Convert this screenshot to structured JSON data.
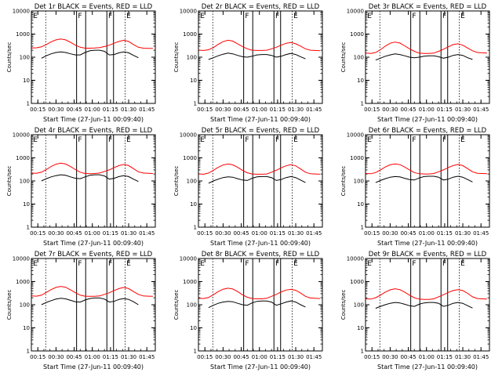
{
  "figure": {
    "start_time_label": "Start Time (27-Jun-11 00:09:40)",
    "ylabel": "Counts/sec",
    "x_tick_labels": [
      "00:15",
      "00:30",
      "00:45",
      "01:00",
      "01:15",
      "01:30",
      "01:45"
    ],
    "y_tick_labels": [
      "1",
      "10",
      "100",
      "1000",
      "10000"
    ],
    "colors": {
      "events": "#000000",
      "lld": "#ff0000"
    },
    "markers": {
      "eclipse": "E",
      "fault": "F"
    }
  },
  "chart_data": [
    {
      "type": "line",
      "title": "Det 1r BLACK = Events, RED = LLD",
      "xlabel": "Start Time (27-Jun-11 00:09:40)",
      "ylabel": "Counts/sec",
      "xlim": [
        "00:09:40",
        "01:52:00"
      ],
      "ylim": [
        1,
        10000
      ],
      "yscale": "log",
      "grid": false,
      "x_ticks": [
        "00:15",
        "00:30",
        "00:45",
        "01:00",
        "01:15",
        "01:30",
        "01:45"
      ],
      "x": [
        "00:10",
        "00:14",
        "00:18",
        "00:22",
        "00:26",
        "00:30",
        "00:34",
        "00:38",
        "00:42",
        "00:46",
        "00:50",
        "00:54",
        "00:58",
        "01:02",
        "01:06",
        "01:10",
        "01:14",
        "01:18",
        "01:22",
        "01:26",
        "01:30",
        "01:34",
        "01:38",
        "01:42",
        "01:46",
        "01:50"
      ],
      "series": [
        {
          "name": "LLD",
          "color": "#ff0000",
          "values": [
            250,
            255,
            280,
            350,
            460,
            560,
            610,
            560,
            440,
            330,
            270,
            245,
            245,
            250,
            260,
            290,
            330,
            400,
            480,
            540,
            480,
            350,
            270,
            245,
            240,
            240
          ]
        },
        {
          "name": "Events",
          "color": "#000000",
          "values": [
            null,
            null,
            90,
            115,
            140,
            160,
            170,
            160,
            140,
            125,
            125,
            160,
            190,
            200,
            200,
            180,
            125,
            130,
            155,
            170,
            155,
            120,
            95,
            null,
            null,
            null
          ]
        }
      ]
    },
    {
      "type": "line",
      "title": "Det 2r BLACK = Events, RED = LLD",
      "xlabel": "Start Time (27-Jun-11 00:09:40)",
      "ylabel": "Counts/sec",
      "xlim": [
        "00:09:40",
        "01:52:00"
      ],
      "ylim": [
        1,
        10000
      ],
      "yscale": "log",
      "grid": false,
      "x_ticks": [
        "00:15",
        "00:30",
        "00:45",
        "01:00",
        "01:15",
        "01:30",
        "01:45"
      ],
      "x": [
        "00:10",
        "00:14",
        "00:18",
        "00:22",
        "00:26",
        "00:30",
        "00:34",
        "00:38",
        "00:42",
        "00:46",
        "00:50",
        "00:54",
        "00:58",
        "01:02",
        "01:06",
        "01:10",
        "01:14",
        "01:18",
        "01:22",
        "01:26",
        "01:30",
        "01:34",
        "01:38",
        "01:42",
        "01:46",
        "01:50"
      ],
      "series": [
        {
          "name": "LLD",
          "color": "#ff0000",
          "values": [
            200,
            195,
            210,
            260,
            360,
            470,
            540,
            500,
            380,
            290,
            230,
            200,
            195,
            195,
            200,
            230,
            270,
            330,
            400,
            430,
            380,
            300,
            230,
            200,
            195,
            190
          ]
        },
        {
          "name": "Events",
          "color": "#000000",
          "values": [
            null,
            null,
            80,
            95,
            115,
            135,
            150,
            140,
            120,
            105,
            100,
            110,
            125,
            130,
            130,
            120,
            100,
            110,
            130,
            145,
            130,
            105,
            85,
            null,
            null,
            null
          ]
        }
      ]
    },
    {
      "type": "line",
      "title": "Det 3r BLACK = Events, RED = LLD",
      "xlabel": "Start Time (27-Jun-11 00:09:40)",
      "ylabel": "Counts/sec",
      "xlim": [
        "00:09:40",
        "01:52:00"
      ],
      "ylim": [
        1,
        10000
      ],
      "yscale": "log",
      "grid": false,
      "x_ticks": [
        "00:15",
        "00:30",
        "00:45",
        "01:00",
        "01:15",
        "01:30",
        "01:45"
      ],
      "x": [
        "00:10",
        "00:14",
        "00:18",
        "00:22",
        "00:26",
        "00:30",
        "00:34",
        "00:38",
        "00:42",
        "00:46",
        "00:50",
        "00:54",
        "00:58",
        "01:02",
        "01:06",
        "01:10",
        "01:14",
        "01:18",
        "01:22",
        "01:26",
        "01:30",
        "01:34",
        "01:38",
        "01:42",
        "01:46",
        "01:50"
      ],
      "series": [
        {
          "name": "LLD",
          "color": "#ff0000",
          "values": [
            150,
            145,
            160,
            210,
            300,
            400,
            450,
            410,
            310,
            230,
            180,
            150,
            145,
            145,
            150,
            180,
            220,
            280,
            350,
            380,
            330,
            250,
            190,
            160,
            155,
            150
          ]
        },
        {
          "name": "Events",
          "color": "#000000",
          "values": [
            null,
            null,
            75,
            90,
            110,
            125,
            140,
            130,
            115,
            100,
            95,
            100,
            110,
            115,
            115,
            105,
            90,
            100,
            120,
            130,
            120,
            95,
            80,
            null,
            null,
            null
          ]
        }
      ]
    },
    {
      "type": "line",
      "title": "Det 4r BLACK = Events, RED = LLD",
      "xlabel": "Start Time (27-Jun-11 00:09:40)",
      "ylabel": "Counts/sec",
      "xlim": [
        "00:09:40",
        "01:52:00"
      ],
      "ylim": [
        1,
        10000
      ],
      "yscale": "log",
      "grid": false,
      "x_ticks": [
        "00:15",
        "00:30",
        "00:45",
        "01:00",
        "01:15",
        "01:30",
        "01:45"
      ],
      "x": [
        "00:10",
        "00:14",
        "00:18",
        "00:22",
        "00:26",
        "00:30",
        "00:34",
        "00:38",
        "00:42",
        "00:46",
        "00:50",
        "00:54",
        "00:58",
        "01:02",
        "01:06",
        "01:10",
        "01:14",
        "01:18",
        "01:22",
        "01:26",
        "01:30",
        "01:34",
        "01:38",
        "01:42",
        "01:46",
        "01:50"
      ],
      "series": [
        {
          "name": "LLD",
          "color": "#ff0000",
          "values": [
            220,
            215,
            240,
            310,
            420,
            530,
            590,
            540,
            420,
            310,
            240,
            210,
            205,
            210,
            220,
            260,
            300,
            380,
            460,
            520,
            460,
            340,
            250,
            220,
            215,
            210
          ]
        },
        {
          "name": "Events",
          "color": "#000000",
          "values": [
            null,
            null,
            100,
            125,
            150,
            170,
            185,
            175,
            150,
            130,
            125,
            150,
            175,
            185,
            185,
            165,
            120,
            130,
            155,
            170,
            155,
            120,
            95,
            null,
            null,
            null
          ]
        }
      ]
    },
    {
      "type": "line",
      "title": "Det 5r BLACK = Events, RED = LLD",
      "xlabel": "Start Time (27-Jun-11 00:09:40)",
      "ylabel": "Counts/sec",
      "xlim": [
        "00:09:40",
        "01:52:00"
      ],
      "ylim": [
        1,
        10000
      ],
      "yscale": "log",
      "grid": false,
      "x_ticks": [
        "00:15",
        "00:30",
        "00:45",
        "01:00",
        "01:15",
        "01:30",
        "01:45"
      ],
      "x": [
        "00:10",
        "00:14",
        "00:18",
        "00:22",
        "00:26",
        "00:30",
        "00:34",
        "00:38",
        "00:42",
        "00:46",
        "00:50",
        "00:54",
        "00:58",
        "01:02",
        "01:06",
        "01:10",
        "01:14",
        "01:18",
        "01:22",
        "01:26",
        "01:30",
        "01:34",
        "01:38",
        "01:42",
        "01:46",
        "01:50"
      ],
      "series": [
        {
          "name": "LLD",
          "color": "#ff0000",
          "values": [
            200,
            195,
            220,
            290,
            390,
            490,
            540,
            500,
            390,
            290,
            225,
            200,
            195,
            195,
            200,
            240,
            290,
            370,
            450,
            510,
            450,
            330,
            240,
            205,
            200,
            195
          ]
        },
        {
          "name": "Events",
          "color": "#000000",
          "values": [
            null,
            null,
            80,
            100,
            120,
            140,
            150,
            145,
            125,
            110,
            105,
            130,
            150,
            155,
            155,
            140,
            105,
            115,
            140,
            155,
            140,
            110,
            85,
            null,
            null,
            null
          ]
        }
      ]
    },
    {
      "type": "line",
      "title": "Det 6r BLACK = Events, RED = LLD",
      "xlabel": "Start Time (27-Jun-11 00:09:40)",
      "ylabel": "Counts/sec",
      "xlim": [
        "00:09:40",
        "01:52:00"
      ],
      "ylim": [
        1,
        10000
      ],
      "yscale": "log",
      "grid": false,
      "x_ticks": [
        "00:15",
        "00:30",
        "00:45",
        "01:00",
        "01:15",
        "01:30",
        "01:45"
      ],
      "x": [
        "00:10",
        "00:14",
        "00:18",
        "00:22",
        "00:26",
        "00:30",
        "00:34",
        "00:38",
        "00:42",
        "00:46",
        "00:50",
        "00:54",
        "00:58",
        "01:02",
        "01:06",
        "01:10",
        "01:14",
        "01:18",
        "01:22",
        "01:26",
        "01:30",
        "01:34",
        "01:38",
        "01:42",
        "01:46",
        "01:50"
      ],
      "series": [
        {
          "name": "LLD",
          "color": "#ff0000",
          "values": [
            210,
            205,
            230,
            300,
            400,
            500,
            550,
            510,
            400,
            300,
            230,
            205,
            200,
            200,
            210,
            250,
            300,
            380,
            460,
            520,
            460,
            340,
            250,
            215,
            210,
            205
          ]
        },
        {
          "name": "Events",
          "color": "#000000",
          "values": [
            null,
            null,
            85,
            105,
            125,
            145,
            155,
            150,
            130,
            115,
            110,
            135,
            155,
            160,
            160,
            145,
            110,
            120,
            145,
            160,
            145,
            115,
            90,
            null,
            null,
            null
          ]
        }
      ]
    },
    {
      "type": "line",
      "title": "Det 7r BLACK = Events, RED = LLD",
      "xlabel": "Start Time (27-Jun-11 00:09:40)",
      "ylabel": "Counts/sec",
      "xlim": [
        "00:09:40",
        "01:52:00"
      ],
      "ylim": [
        1,
        10000
      ],
      "yscale": "log",
      "grid": false,
      "x_ticks": [
        "00:15",
        "00:30",
        "00:45",
        "01:00",
        "01:15",
        "01:30",
        "01:45"
      ],
      "x": [
        "00:10",
        "00:14",
        "00:18",
        "00:22",
        "00:26",
        "00:30",
        "00:34",
        "00:38",
        "00:42",
        "00:46",
        "00:50",
        "00:54",
        "00:58",
        "01:02",
        "01:06",
        "01:10",
        "01:14",
        "01:18",
        "01:22",
        "01:26",
        "01:30",
        "01:34",
        "01:38",
        "01:42",
        "01:46",
        "01:50"
      ],
      "series": [
        {
          "name": "LLD",
          "color": "#ff0000",
          "values": [
            240,
            235,
            260,
            340,
            450,
            560,
            620,
            570,
            440,
            330,
            260,
            235,
            230,
            230,
            240,
            280,
            330,
            410,
            500,
            560,
            500,
            370,
            280,
            240,
            235,
            230
          ]
        },
        {
          "name": "Events",
          "color": "#000000",
          "values": [
            null,
            null,
            100,
            125,
            150,
            175,
            190,
            180,
            155,
            135,
            130,
            160,
            185,
            195,
            195,
            175,
            130,
            140,
            170,
            185,
            170,
            135,
            100,
            null,
            null,
            null
          ]
        }
      ]
    },
    {
      "type": "line",
      "title": "Det 8r BLACK = Events, RED = LLD",
      "xlabel": "Start Time (27-Jun-11 00:09:40)",
      "ylabel": "Counts/sec",
      "xlim": [
        "00:09:40",
        "01:52:00"
      ],
      "ylim": [
        1,
        10000
      ],
      "yscale": "log",
      "grid": false,
      "x_ticks": [
        "00:15",
        "00:30",
        "00:45",
        "01:00",
        "01:15",
        "01:30",
        "01:45"
      ],
      "x": [
        "00:10",
        "00:14",
        "00:18",
        "00:22",
        "00:26",
        "00:30",
        "00:34",
        "00:38",
        "00:42",
        "00:46",
        "00:50",
        "00:54",
        "00:58",
        "01:02",
        "01:06",
        "01:10",
        "01:14",
        "01:18",
        "01:22",
        "01:26",
        "01:30",
        "01:34",
        "01:38",
        "01:42",
        "01:46",
        "01:50"
      ],
      "series": [
        {
          "name": "LLD",
          "color": "#ff0000",
          "values": [
            190,
            185,
            205,
            270,
            370,
            470,
            520,
            480,
            370,
            270,
            210,
            185,
            180,
            180,
            190,
            230,
            280,
            360,
            430,
            460,
            420,
            320,
            230,
            195,
            190,
            185
          ]
        },
        {
          "name": "Events",
          "color": "#000000",
          "values": [
            null,
            null,
            75,
            95,
            115,
            130,
            140,
            135,
            115,
            100,
            95,
            120,
            140,
            145,
            145,
            130,
            95,
            110,
            130,
            145,
            130,
            100,
            80,
            null,
            null,
            null
          ]
        }
      ]
    },
    {
      "type": "line",
      "title": "Det 9r BLACK = Events, RED = LLD",
      "xlabel": "Start Time (27-Jun-11 00:09:40)",
      "ylabel": "Counts/sec",
      "xlim": [
        "00:09:40",
        "01:52:00"
      ],
      "ylim": [
        1,
        10000
      ],
      "yscale": "log",
      "grid": false,
      "x_ticks": [
        "00:15",
        "00:30",
        "00:45",
        "01:00",
        "01:15",
        "01:30",
        "01:45"
      ],
      "x": [
        "00:10",
        "00:14",
        "00:18",
        "00:22",
        "00:26",
        "00:30",
        "00:34",
        "00:38",
        "00:42",
        "00:46",
        "00:50",
        "00:54",
        "00:58",
        "01:02",
        "01:06",
        "01:10",
        "01:14",
        "01:18",
        "01:22",
        "01:26",
        "01:30",
        "01:34",
        "01:38",
        "01:42",
        "01:46",
        "01:50"
      ],
      "series": [
        {
          "name": "LLD",
          "color": "#ff0000",
          "values": [
            180,
            175,
            200,
            260,
            350,
            440,
            490,
            450,
            350,
            260,
            200,
            175,
            170,
            170,
            180,
            220,
            270,
            340,
            410,
            450,
            410,
            310,
            220,
            185,
            180,
            175
          ]
        },
        {
          "name": "Events",
          "color": "#000000",
          "values": [
            null,
            null,
            70,
            85,
            100,
            115,
            125,
            120,
            105,
            90,
            85,
            105,
            120,
            125,
            125,
            115,
            85,
            95,
            115,
            125,
            115,
            90,
            72,
            null,
            null,
            null
          ]
        }
      ]
    }
  ]
}
